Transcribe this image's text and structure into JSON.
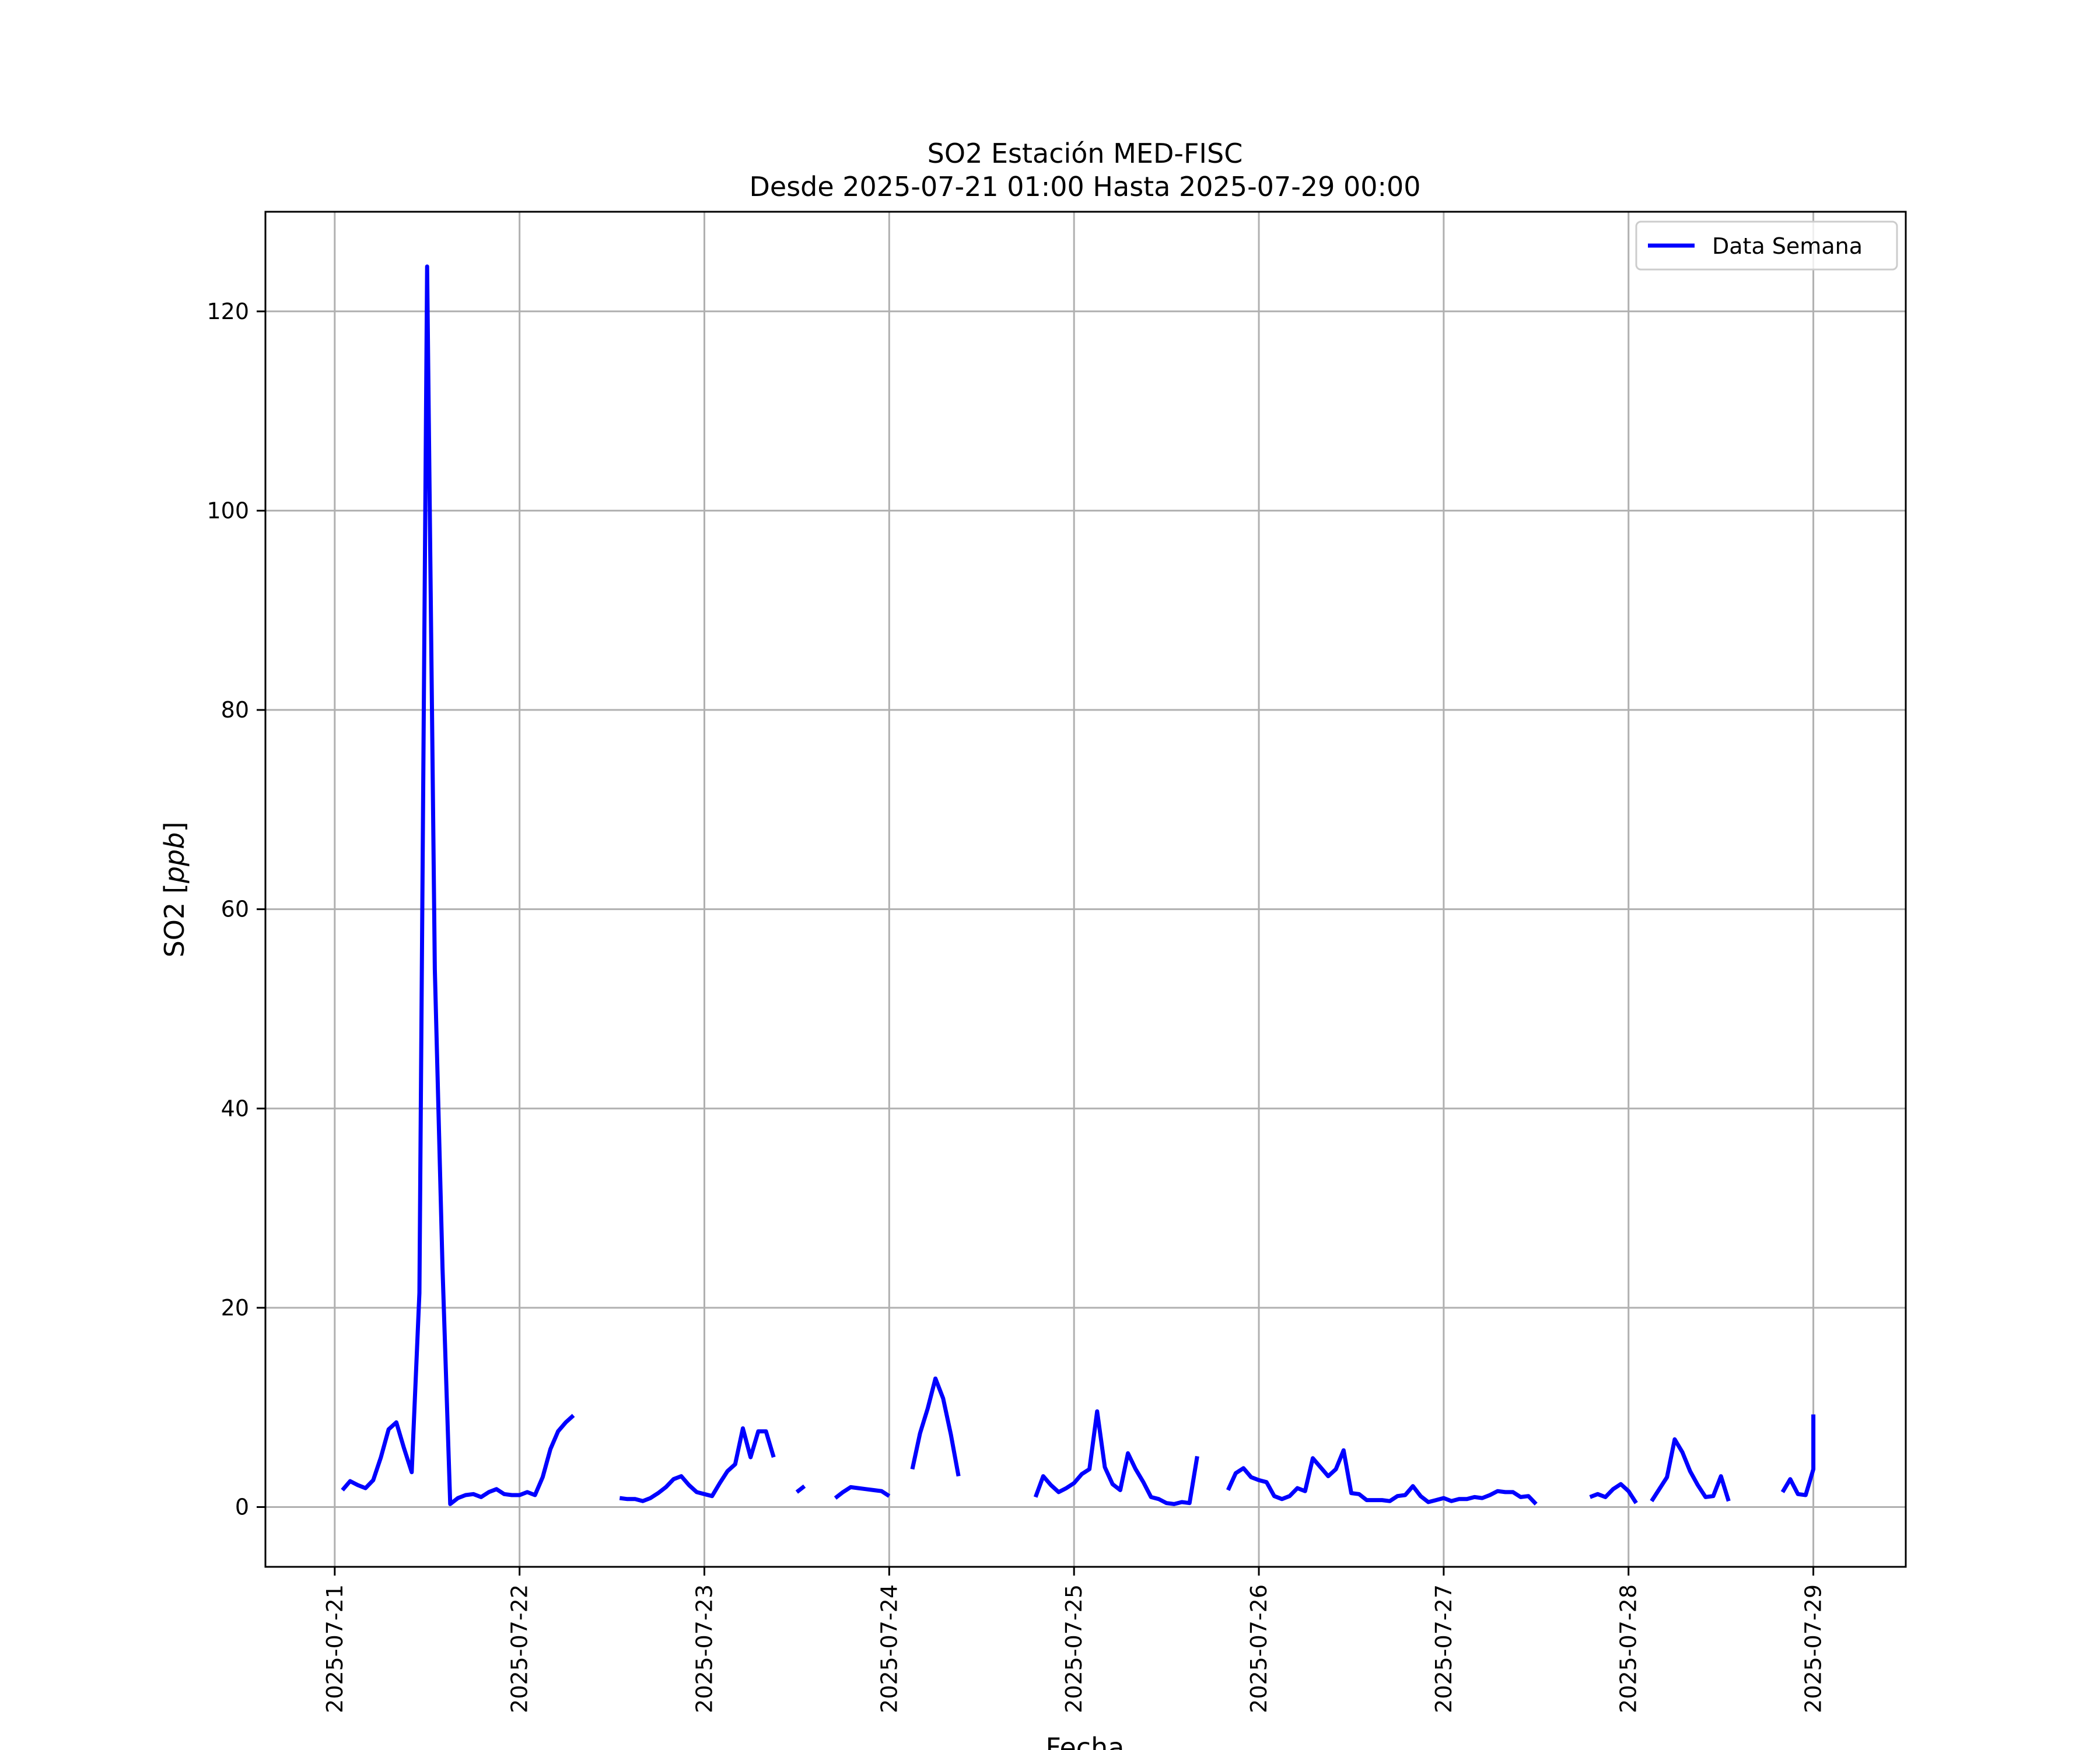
{
  "chart_data": {
    "type": "line",
    "title": "SO2 Estación MED-FISC",
    "subtitle": "Desde 2025-07-21 01:00 Hasta 2025-07-29 00:00",
    "xlabel": "Fecha",
    "ylabel_main": "SO2 [",
    "ylabel_unit": "ppb",
    "ylabel_close": "]",
    "xlim": [
      "2025-07-20 15:00",
      "2025-07-29 12:00"
    ],
    "ylim": [
      -6,
      130
    ],
    "x_ticks": [
      "2025-07-21",
      "2025-07-22",
      "2025-07-23",
      "2025-07-24",
      "2025-07-25",
      "2025-07-26",
      "2025-07-27",
      "2025-07-28",
      "2025-07-29"
    ],
    "y_ticks": [
      0,
      20,
      40,
      60,
      80,
      100,
      120
    ],
    "grid": true,
    "legend_position": "upper right",
    "series": [
      {
        "name": "Data Semana",
        "color": "#0000ff",
        "segments": [
          [
            [
              "2025-07-21 01:00",
              1.7
            ],
            [
              "2025-07-21 02:00",
              2.6
            ],
            [
              "2025-07-21 03:00",
              2.2
            ],
            [
              "2025-07-21 04:00",
              1.9
            ],
            [
              "2025-07-21 05:00",
              2.7
            ],
            [
              "2025-07-21 06:00",
              5.0
            ],
            [
              "2025-07-21 07:00",
              7.8
            ],
            [
              "2025-07-21 08:00",
              8.5
            ],
            [
              "2025-07-21 09:00",
              5.9
            ],
            [
              "2025-07-21 10:00",
              3.5
            ],
            [
              "2025-07-21 11:00",
              21.5
            ],
            [
              "2025-07-21 12:00",
              124.5
            ],
            [
              "2025-07-21 13:00",
              54.0
            ],
            [
              "2025-07-21 14:00",
              24.0
            ],
            [
              "2025-07-21 15:00",
              0.3
            ],
            [
              "2025-07-21 16:00",
              0.9
            ],
            [
              "2025-07-21 17:00",
              1.2
            ],
            [
              "2025-07-21 18:00",
              1.3
            ],
            [
              "2025-07-21 19:00",
              1.0
            ],
            [
              "2025-07-21 20:00",
              1.5
            ],
            [
              "2025-07-21 21:00",
              1.8
            ],
            [
              "2025-07-21 22:00",
              1.3
            ],
            [
              "2025-07-21 23:00",
              1.2
            ],
            [
              "2025-07-22 00:00",
              1.2
            ],
            [
              "2025-07-22 01:00",
              1.5
            ],
            [
              "2025-07-22 02:00",
              1.2
            ],
            [
              "2025-07-22 03:00",
              3.0
            ],
            [
              "2025-07-22 04:00",
              5.8
            ],
            [
              "2025-07-22 05:00",
              7.6
            ],
            [
              "2025-07-22 06:00",
              8.5
            ],
            [
              "2025-07-22 07:00",
              9.2
            ]
          ],
          [
            [
              "2025-07-22 13:00",
              0.9
            ],
            [
              "2025-07-22 14:00",
              0.8
            ],
            [
              "2025-07-22 15:00",
              0.8
            ],
            [
              "2025-07-22 16:00",
              0.6
            ],
            [
              "2025-07-22 17:00",
              0.9
            ],
            [
              "2025-07-22 18:00",
              1.4
            ],
            [
              "2025-07-22 19:00",
              2.0
            ],
            [
              "2025-07-22 20:00",
              2.8
            ],
            [
              "2025-07-22 21:00",
              3.1
            ],
            [
              "2025-07-22 22:00",
              2.2
            ],
            [
              "2025-07-22 23:00",
              1.5
            ],
            [
              "2025-07-23 00:00",
              1.3
            ],
            [
              "2025-07-23 01:00",
              1.1
            ],
            [
              "2025-07-23 02:00",
              2.4
            ],
            [
              "2025-07-23 03:00",
              3.6
            ],
            [
              "2025-07-23 04:00",
              4.3
            ],
            [
              "2025-07-23 05:00",
              7.9
            ],
            [
              "2025-07-23 06:00",
              5.0
            ],
            [
              "2025-07-23 07:00",
              7.6
            ],
            [
              "2025-07-23 08:00",
              7.6
            ],
            [
              "2025-07-23 09:00",
              5.0
            ]
          ],
          [
            [
              "2025-07-23 12:00",
              1.5
            ],
            [
              "2025-07-23 13:00",
              2.1
            ]
          ],
          [
            [
              "2025-07-23 17:00",
              0.9
            ],
            [
              "2025-07-23 18:00",
              1.5
            ],
            [
              "2025-07-23 19:00",
              2.0
            ],
            [
              "2025-07-23 20:00",
              1.9
            ],
            [
              "2025-07-23 21:00",
              1.8
            ],
            [
              "2025-07-23 22:00",
              1.7
            ],
            [
              "2025-07-23 23:00",
              1.6
            ],
            [
              "2025-07-24 00:00",
              1.1
            ]
          ],
          [
            [
              "2025-07-24 03:00",
              3.8
            ],
            [
              "2025-07-24 04:00",
              7.4
            ],
            [
              "2025-07-24 05:00",
              9.9
            ],
            [
              "2025-07-24 06:00",
              12.9
            ],
            [
              "2025-07-24 07:00",
              10.9
            ],
            [
              "2025-07-24 08:00",
              7.3
            ],
            [
              "2025-07-24 09:00",
              3.1
            ]
          ],
          [
            [
              "2025-07-24 19:00",
              1.0
            ],
            [
              "2025-07-24 20:00",
              3.1
            ],
            [
              "2025-07-24 21:00",
              2.2
            ],
            [
              "2025-07-24 22:00",
              1.5
            ],
            [
              "2025-07-24 23:00",
              1.9
            ],
            [
              "2025-07-25 00:00",
              2.4
            ],
            [
              "2025-07-25 01:00",
              3.3
            ],
            [
              "2025-07-25 02:00",
              3.8
            ],
            [
              "2025-07-25 03:00",
              9.6
            ],
            [
              "2025-07-25 04:00",
              4.0
            ],
            [
              "2025-07-25 05:00",
              2.3
            ],
            [
              "2025-07-25 06:00",
              1.7
            ],
            [
              "2025-07-25 07:00",
              5.4
            ],
            [
              "2025-07-25 08:00",
              3.8
            ],
            [
              "2025-07-25 09:00",
              2.5
            ],
            [
              "2025-07-25 10:00",
              1.0
            ],
            [
              "2025-07-25 11:00",
              0.8
            ],
            [
              "2025-07-25 12:00",
              0.4
            ],
            [
              "2025-07-25 13:00",
              0.3
            ],
            [
              "2025-07-25 14:00",
              0.5
            ],
            [
              "2025-07-25 15:00",
              0.4
            ],
            [
              "2025-07-25 16:00",
              5.1
            ]
          ],
          [
            [
              "2025-07-25 20:00",
              1.7
            ],
            [
              "2025-07-25 21:00",
              3.4
            ],
            [
              "2025-07-25 22:00",
              3.9
            ],
            [
              "2025-07-25 23:00",
              3.0
            ],
            [
              "2025-07-26 00:00",
              2.7
            ],
            [
              "2025-07-26 01:00",
              2.5
            ],
            [
              "2025-07-26 02:00",
              1.1
            ],
            [
              "2025-07-26 03:00",
              0.8
            ],
            [
              "2025-07-26 04:00",
              1.1
            ],
            [
              "2025-07-26 05:00",
              1.9
            ],
            [
              "2025-07-26 06:00",
              1.6
            ],
            [
              "2025-07-26 07:00",
              4.9
            ],
            [
              "2025-07-26 08:00",
              4.0
            ],
            [
              "2025-07-26 09:00",
              3.1
            ],
            [
              "2025-07-26 10:00",
              3.8
            ],
            [
              "2025-07-26 11:00",
              5.7
            ],
            [
              "2025-07-26 12:00",
              1.4
            ],
            [
              "2025-07-26 13:00",
              1.3
            ],
            [
              "2025-07-26 14:00",
              0.7
            ],
            [
              "2025-07-26 15:00",
              0.7
            ],
            [
              "2025-07-26 16:00",
              0.7
            ],
            [
              "2025-07-26 17:00",
              0.6
            ],
            [
              "2025-07-26 18:00",
              1.1
            ],
            [
              "2025-07-26 19:00",
              1.2
            ],
            [
              "2025-07-26 20:00",
              2.1
            ],
            [
              "2025-07-26 21:00",
              1.1
            ],
            [
              "2025-07-26 22:00",
              0.5
            ],
            [
              "2025-07-26 23:00",
              0.7
            ],
            [
              "2025-07-27 00:00",
              0.9
            ],
            [
              "2025-07-27 01:00",
              0.6
            ],
            [
              "2025-07-27 02:00",
              0.8
            ],
            [
              "2025-07-27 03:00",
              0.8
            ],
            [
              "2025-07-27 04:00",
              1.0
            ],
            [
              "2025-07-27 05:00",
              0.9
            ],
            [
              "2025-07-27 06:00",
              1.2
            ],
            [
              "2025-07-27 07:00",
              1.6
            ],
            [
              "2025-07-27 08:00",
              1.5
            ],
            [
              "2025-07-27 09:00",
              1.5
            ],
            [
              "2025-07-27 10:00",
              1.0
            ],
            [
              "2025-07-27 11:00",
              1.1
            ],
            [
              "2025-07-27 12:00",
              0.3
            ]
          ],
          [
            [
              "2025-07-27 19:00",
              1.0
            ],
            [
              "2025-07-27 20:00",
              1.3
            ],
            [
              "2025-07-27 21:00",
              1.0
            ],
            [
              "2025-07-27 22:00",
              1.8
            ],
            [
              "2025-07-27 23:00",
              2.3
            ],
            [
              "2025-07-28 00:00",
              1.6
            ],
            [
              "2025-07-28 01:00",
              0.4
            ]
          ],
          [
            [
              "2025-07-28 03:00",
              0.6
            ],
            [
              "2025-07-28 04:00",
              1.8
            ],
            [
              "2025-07-28 05:00",
              3.0
            ],
            [
              "2025-07-28 06:00",
              6.8
            ],
            [
              "2025-07-28 07:00",
              5.5
            ],
            [
              "2025-07-28 08:00",
              3.6
            ],
            [
              "2025-07-28 09:00",
              2.2
            ],
            [
              "2025-07-28 10:00",
              1.0
            ],
            [
              "2025-07-28 11:00",
              1.1
            ],
            [
              "2025-07-28 12:00",
              3.1
            ],
            [
              "2025-07-28 13:00",
              0.6
            ]
          ],
          [
            [
              "2025-07-28 20:00",
              1.5
            ],
            [
              "2025-07-28 21:00",
              2.8
            ],
            [
              "2025-07-28 22:00",
              1.3
            ],
            [
              "2025-07-28 23:00",
              1.2
            ],
            [
              "2025-07-29 00:00",
              3.8
            ],
            [
              "2025-07-29 00:00",
              9.3
            ]
          ]
        ]
      }
    ]
  }
}
